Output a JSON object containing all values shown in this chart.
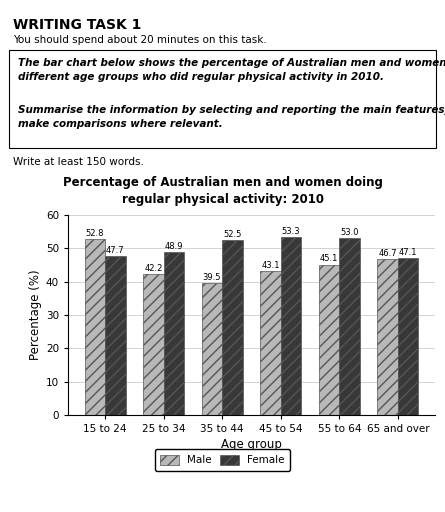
{
  "title_line1": "Percentage of Australian men and women doing",
  "title_line2": "regular physical activity: 2010",
  "age_groups": [
    "15 to 24",
    "25 to 34",
    "35 to 44",
    "45 to 54",
    "55 to 64",
    "65 and over"
  ],
  "male_values": [
    52.8,
    42.2,
    39.5,
    43.1,
    45.1,
    46.7
  ],
  "female_values": [
    47.7,
    48.9,
    52.5,
    53.3,
    53.0,
    47.1
  ],
  "male_color": "#b8b8b8",
  "female_color": "#383838",
  "male_hatch": "///",
  "female_hatch": "///",
  "ylabel": "Percentage (%)",
  "xlabel": "Age group",
  "ylim": [
    0,
    60
  ],
  "yticks": [
    0,
    10,
    20,
    30,
    40,
    50,
    60
  ],
  "bar_width": 0.35,
  "header_title": "WRITING TASK 1",
  "subtitle": "You should spend about 20 minutes on this task.",
  "box_text1": "The bar chart below shows the percentage of Australian men and women in\ndifferent age groups who did regular physical activity in 2010.",
  "box_text2": "Summarise the information by selecting and reporting the main features, and\nmake comparisons where relevant.",
  "footer": "Write at least 150 words.",
  "value_fontsize": 6.0,
  "axis_label_fontsize": 8.5,
  "tick_fontsize": 7.5,
  "title_fontsize": 8.5,
  "legend_fontsize": 7.5
}
